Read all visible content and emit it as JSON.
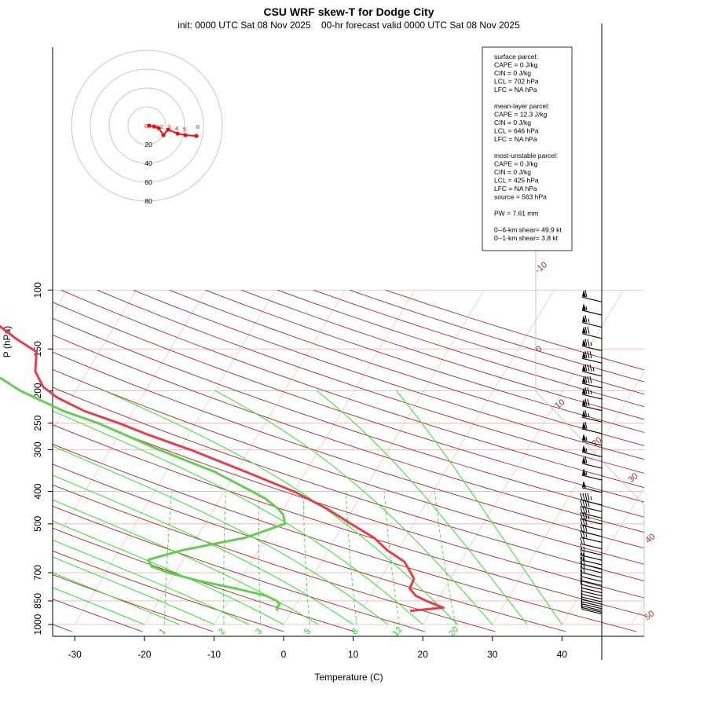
{
  "chart_data": {
    "type": "skew-t",
    "title": "CSU WRF skew-T for Dodge City",
    "subtitle": "init: 0000 UTC Sat 08 Nov 2025    00-hr forecast valid 0000 UTC Sat 08 Nov 2025",
    "xlabel": "Temperature (C)",
    "ylabel": "P (hPa)",
    "xlim": [
      -33,
      41
    ],
    "ylim": [
      1000,
      100
    ],
    "x_ticks": [
      "-30",
      "-20",
      "-10",
      "0",
      "10",
      "20",
      "30",
      "40"
    ],
    "y_ticks": [
      "100",
      "150",
      "200",
      "250",
      "300",
      "400",
      "500",
      "700",
      "850",
      "1000"
    ],
    "isotherm_labels": [
      "-10",
      "0",
      "10",
      "20",
      "30",
      "40",
      "50"
    ],
    "mixing_ratio_labels": [
      "1",
      "2",
      "3",
      "5",
      "8",
      "12",
      "20"
    ],
    "series": [
      {
        "name": "temperature",
        "color": "#e04050",
        "points": [
          {
            "p": 910,
            "t": 17.0
          },
          {
            "p": 890,
            "t": 21.5
          },
          {
            "p": 870,
            "t": 20.0
          },
          {
            "p": 850,
            "t": 18.5
          },
          {
            "p": 820,
            "t": 16.5
          },
          {
            "p": 780,
            "t": 15.0
          },
          {
            "p": 730,
            "t": 14.8
          },
          {
            "p": 700,
            "t": 13.8
          },
          {
            "p": 650,
            "t": 12.0
          },
          {
            "p": 600,
            "t": 8.5
          },
          {
            "p": 550,
            "t": 5.5
          },
          {
            "p": 500,
            "t": 1.0
          },
          {
            "p": 450,
            "t": -3.8
          },
          {
            "p": 400,
            "t": -10.0
          },
          {
            "p": 350,
            "t": -18.5
          },
          {
            "p": 300,
            "t": -28.5
          },
          {
            "p": 270,
            "t": -36.0
          },
          {
            "p": 250,
            "t": -41.0
          },
          {
            "p": 230,
            "t": -47.0
          },
          {
            "p": 210,
            "t": -52.0
          },
          {
            "p": 195,
            "t": -55.0
          },
          {
            "p": 175,
            "t": -57.5
          },
          {
            "p": 153,
            "t": -59.0
          },
          {
            "p": 140,
            "t": -63.0
          },
          {
            "p": 125,
            "t": -67.5
          },
          {
            "p": 112,
            "t": -71.0
          },
          {
            "p": 105,
            "t": -73.0
          }
        ]
      },
      {
        "name": "dewpoint",
        "color": "#66cc55",
        "points": [
          {
            "p": 910,
            "t": -2.0
          },
          {
            "p": 890,
            "t": -2.5
          },
          {
            "p": 870,
            "t": -2.3
          },
          {
            "p": 850,
            "t": -3.0
          },
          {
            "p": 820,
            "t": -5.0
          },
          {
            "p": 780,
            "t": -10.0
          },
          {
            "p": 740,
            "t": -16.0
          },
          {
            "p": 700,
            "t": -21.0
          },
          {
            "p": 670,
            "t": -24.0
          },
          {
            "p": 640,
            "t": -25.0
          },
          {
            "p": 600,
            "t": -21.0
          },
          {
            "p": 550,
            "t": -13.0
          },
          {
            "p": 500,
            "t": -8.5
          },
          {
            "p": 470,
            "t": -9.5
          },
          {
            "p": 450,
            "t": -10.8
          },
          {
            "p": 420,
            "t": -13.5
          },
          {
            "p": 400,
            "t": -16.0
          },
          {
            "p": 350,
            "t": -23.0
          },
          {
            "p": 300,
            "t": -33.0
          },
          {
            "p": 250,
            "t": -44.0
          },
          {
            "p": 230,
            "t": -50.0
          },
          {
            "p": 200,
            "t": -58.0
          },
          {
            "p": 175,
            "t": -64.0
          },
          {
            "p": 160,
            "t": -70.0
          }
        ]
      }
    ],
    "hodograph": {
      "ring_labels": [
        "20",
        "40",
        "60",
        "80"
      ],
      "height_labels": [
        "0",
        "1",
        "2",
        "3",
        "4",
        "5",
        "6"
      ]
    },
    "info_box": [
      "surface parcel:",
      "CAPE = 0 J/kg",
      "CIN = 0 J/kg",
      "LCL = 702 hPa",
      "LFC = NA hPa",
      "",
      "mean-layer parcel:",
      "CAPE = 12.3 J/kg",
      "CIN = 0 J/kg",
      "LCL = 646 hPa",
      "LFC = NA hPa",
      "",
      "most-unstable parcel:",
      "CAPE = 0 J/kg",
      "CIN = 0 J/kg",
      "LCL = 425 hPa",
      "LFC = NA hPa",
      "source = 563 hPa",
      "",
      "PW =  7.61 mm",
      "",
      "0--6-km shear= 49.9 kt",
      "0--1-km shear= 3.8 kt"
    ],
    "wind_barbs": [
      {
        "p": 105,
        "kt": 60
      },
      {
        "p": 115,
        "kt": 55
      },
      {
        "p": 125,
        "kt": 65
      },
      {
        "p": 135,
        "kt": 70
      },
      {
        "p": 147,
        "kt": 75
      },
      {
        "p": 160,
        "kt": 80
      },
      {
        "p": 175,
        "kt": 85
      },
      {
        "p": 190,
        "kt": 80
      },
      {
        "p": 205,
        "kt": 75
      },
      {
        "p": 222,
        "kt": 70
      },
      {
        "p": 240,
        "kt": 65
      },
      {
        "p": 260,
        "kt": 60
      },
      {
        "p": 282,
        "kt": 55
      },
      {
        "p": 305,
        "kt": 55
      },
      {
        "p": 330,
        "kt": 60
      },
      {
        "p": 358,
        "kt": 55
      },
      {
        "p": 390,
        "kt": 50
      },
      {
        "p": 425,
        "kt": 45
      },
      {
        "p": 445,
        "kt": 40
      },
      {
        "p": 465,
        "kt": 35
      },
      {
        "p": 485,
        "kt": 35
      },
      {
        "p": 505,
        "kt": 30
      },
      {
        "p": 528,
        "kt": 30
      },
      {
        "p": 550,
        "kt": 25
      },
      {
        "p": 575,
        "kt": 20
      },
      {
        "p": 600,
        "kt": 15
      },
      {
        "p": 622,
        "kt": 15
      },
      {
        "p": 642,
        "kt": 20
      },
      {
        "p": 660,
        "kt": 20
      },
      {
        "p": 678,
        "kt": 15
      },
      {
        "p": 700,
        "kt": 15
      },
      {
        "p": 720,
        "kt": 10
      },
      {
        "p": 740,
        "kt": 10
      },
      {
        "p": 760,
        "kt": 10
      },
      {
        "p": 778,
        "kt": 10
      },
      {
        "p": 795,
        "kt": 5
      },
      {
        "p": 812,
        "kt": 5
      },
      {
        "p": 828,
        "kt": 5
      },
      {
        "p": 842,
        "kt": 5
      },
      {
        "p": 855,
        "kt": 5
      },
      {
        "p": 868,
        "kt": 5
      },
      {
        "p": 880,
        "kt": 5
      },
      {
        "p": 890,
        "kt": 5
      },
      {
        "p": 900,
        "kt": 5
      }
    ]
  }
}
